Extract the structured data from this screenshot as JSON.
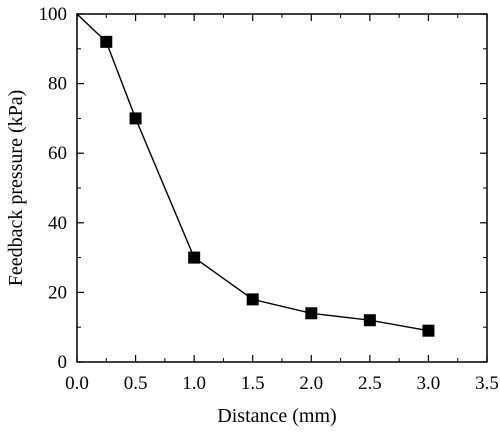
{
  "chart_data": {
    "type": "line",
    "title": "",
    "xlabel": "Distance (mm)",
    "ylabel": "Feedback pressure (kPa)",
    "xlim": [
      0.0,
      3.5
    ],
    "ylim": [
      0,
      100
    ],
    "xticks": [
      0.0,
      0.5,
      1.0,
      1.5,
      2.0,
      2.5,
      3.0,
      3.5
    ],
    "yticks": [
      0,
      20,
      40,
      60,
      80,
      100
    ],
    "xtick_labels": [
      "0.0",
      "0.5",
      "1.0",
      "1.5",
      "2.0",
      "2.5",
      "3.0",
      "3.5"
    ],
    "ytick_labels": [
      "0",
      "20",
      "40",
      "60",
      "80",
      "100"
    ],
    "grid": false,
    "series": [
      {
        "x": [
          0.25,
          0.5,
          1.0,
          1.5,
          2.0,
          2.5,
          3.0
        ],
        "y": [
          92,
          70,
          30,
          18,
          14,
          12,
          9
        ],
        "marker": "square",
        "color": "#000000"
      }
    ],
    "line_start": {
      "x": 0.0,
      "y": 100
    }
  }
}
